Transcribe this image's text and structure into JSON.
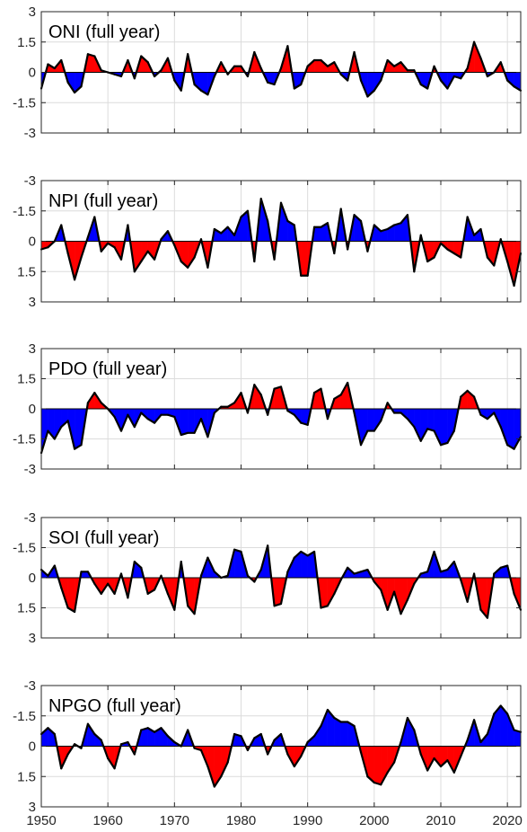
{
  "chart_data": {
    "type": "area",
    "layout": "vertical stack of 5 panels sharing the x-axis",
    "xlim": [
      1950,
      2022
    ],
    "x_ticks": [
      1950,
      1960,
      1970,
      1980,
      1990,
      2000,
      2010,
      2020
    ],
    "x_tick_labels": [
      "1950",
      "1960",
      "1970",
      "1980",
      "1990",
      "2000",
      "2010",
      "2020"
    ],
    "grid": true,
    "colors": {
      "positive_fill": "#ff0000",
      "negative_fill": "#0000ff",
      "line": "#000000"
    },
    "years": [
      1950,
      1951,
      1952,
      1953,
      1954,
      1955,
      1956,
      1957,
      1958,
      1959,
      1960,
      1961,
      1962,
      1963,
      1964,
      1965,
      1966,
      1967,
      1968,
      1969,
      1970,
      1971,
      1972,
      1973,
      1974,
      1975,
      1976,
      1977,
      1978,
      1979,
      1980,
      1981,
      1982,
      1983,
      1984,
      1985,
      1986,
      1987,
      1988,
      1989,
      1990,
      1991,
      1992,
      1993,
      1994,
      1995,
      1996,
      1997,
      1998,
      1999,
      2000,
      2001,
      2002,
      2003,
      2004,
      2005,
      2006,
      2007,
      2008,
      2009,
      2010,
      2011,
      2012,
      2013,
      2014,
      2015,
      2016,
      2017,
      2018,
      2019,
      2020,
      2021,
      2022
    ],
    "panels": [
      {
        "title": "ONI (full year)",
        "ylim": [
          -3,
          3
        ],
        "inverted": false,
        "y_ticks": [
          3,
          1.5,
          0,
          -1.5,
          -3
        ],
        "y_tick_labels": [
          "3",
          "1.5",
          "0",
          "-1.5",
          "-3"
        ],
        "values": [
          -0.8,
          0.4,
          0.2,
          0.6,
          -0.5,
          -1.0,
          -0.7,
          0.9,
          0.8,
          0.1,
          0.0,
          -0.1,
          -0.2,
          0.6,
          -0.3,
          0.8,
          0.5,
          -0.2,
          0.1,
          0.7,
          -0.4,
          -0.9,
          0.9,
          -0.6,
          -0.9,
          -1.1,
          -0.2,
          0.5,
          -0.1,
          0.3,
          0.3,
          -0.2,
          1.0,
          0.2,
          -0.5,
          -0.6,
          0.2,
          1.3,
          -0.8,
          -0.6,
          0.3,
          0.6,
          0.6,
          0.3,
          0.5,
          -0.1,
          -0.4,
          1.0,
          -0.4,
          -1.2,
          -0.9,
          -0.4,
          0.6,
          0.3,
          0.5,
          0.1,
          0.1,
          -0.6,
          -0.8,
          0.3,
          -0.4,
          -0.8,
          -0.2,
          -0.3,
          0.2,
          1.5,
          0.7,
          -0.2,
          0.0,
          0.5,
          -0.4,
          -0.7,
          -0.9
        ]
      },
      {
        "title": "NPI (full year)",
        "ylim": [
          -3,
          3
        ],
        "inverted": true,
        "y_ticks": [
          -3,
          -1.5,
          0,
          1.5,
          3
        ],
        "y_tick_labels": [
          "-3",
          "-1.5",
          "0",
          "1.5",
          "3"
        ],
        "values": [
          0.4,
          0.3,
          0.0,
          -0.8,
          0.6,
          1.9,
          0.8,
          -0.2,
          -1.2,
          0.5,
          0.1,
          0.3,
          0.9,
          -0.8,
          1.5,
          1.0,
          0.5,
          0.9,
          -0.1,
          -0.5,
          0.2,
          1.0,
          1.3,
          0.8,
          -0.1,
          1.3,
          -0.6,
          -0.4,
          -0.7,
          -0.3,
          -1.2,
          -1.5,
          1.0,
          -2.1,
          -1.0,
          0.9,
          -1.9,
          -1.0,
          -0.8,
          1.7,
          1.7,
          -0.7,
          -0.7,
          -0.9,
          0.6,
          -1.6,
          0.4,
          -1.3,
          -1.0,
          0.5,
          -0.8,
          -0.5,
          -0.6,
          -0.8,
          -0.9,
          -1.3,
          1.5,
          -0.3,
          1.0,
          0.8,
          0.1,
          0.4,
          0.6,
          0.8,
          -1.2,
          -0.3,
          -0.6,
          0.8,
          1.2,
          -0.1,
          1.0,
          2.2,
          0.6
        ]
      },
      {
        "title": "PDO (full year)",
        "ylim": [
          -3,
          3
        ],
        "inverted": false,
        "y_ticks": [
          3,
          1.5,
          0,
          -1.5,
          -3
        ],
        "y_tick_labels": [
          "3",
          "1.5",
          "0",
          "-1.5",
          "-3"
        ],
        "values": [
          -2.2,
          -1.1,
          -1.5,
          -0.9,
          -0.6,
          -2.0,
          -1.8,
          0.3,
          0.8,
          0.3,
          0.0,
          -0.4,
          -1.1,
          -0.3,
          -0.9,
          -0.2,
          -0.5,
          -0.7,
          -0.3,
          -0.3,
          -0.4,
          -1.3,
          -1.2,
          -1.2,
          -0.5,
          -1.4,
          -0.2,
          0.1,
          0.1,
          0.3,
          0.8,
          -0.2,
          1.2,
          0.7,
          -0.3,
          1.0,
          1.1,
          -0.1,
          -0.3,
          -0.7,
          -0.8,
          0.8,
          1.0,
          -0.5,
          0.5,
          0.7,
          1.3,
          -0.2,
          -1.8,
          -1.1,
          -1.1,
          -0.6,
          0.3,
          -0.2,
          -0.2,
          -0.5,
          -0.9,
          -1.6,
          -1.0,
          -1.1,
          -1.8,
          -1.7,
          -1.1,
          0.6,
          0.9,
          0.6,
          -0.3,
          -0.5,
          -0.2,
          -0.9,
          -1.8,
          -2.0,
          -1.4
        ]
      },
      {
        "title": "SOI (full year)",
        "ylim": [
          -3,
          3
        ],
        "inverted": true,
        "y_ticks": [
          -3,
          -1.5,
          0,
          1.5,
          3
        ],
        "y_tick_labels": [
          "-3",
          "-1.5",
          "0",
          "1.5",
          "3"
        ],
        "values": [
          -0.4,
          -0.1,
          -0.6,
          0.5,
          1.5,
          1.7,
          -0.3,
          -0.3,
          0.3,
          0.8,
          0.3,
          0.8,
          -0.2,
          1.0,
          -0.8,
          -0.5,
          0.8,
          0.6,
          -0.1,
          0.8,
          1.6,
          -0.8,
          1.4,
          1.8,
          -0.1,
          -1.0,
          -0.3,
          0.0,
          -0.1,
          -1.4,
          -1.3,
          -0.1,
          0.2,
          -0.4,
          -1.6,
          1.4,
          1.3,
          -0.3,
          -1.0,
          -1.3,
          -1.1,
          -1.3,
          1.5,
          1.4,
          0.8,
          0.1,
          -0.5,
          -0.2,
          -0.3,
          -0.4,
          0.2,
          0.6,
          1.6,
          0.7,
          1.8,
          1.1,
          0.3,
          -0.2,
          -0.3,
          -1.3,
          -0.3,
          -0.4,
          -0.8,
          0.1,
          1.2,
          -0.2,
          1.6,
          2.0,
          -0.2,
          -0.5,
          -0.6,
          0.8,
          1.6
        ]
      },
      {
        "title": "NPGO (full year)",
        "ylim": [
          -3,
          3
        ],
        "inverted": true,
        "y_ticks": [
          -3,
          -1.5,
          0,
          1.5,
          3
        ],
        "y_tick_labels": [
          "-3",
          "-1.5",
          "0",
          "1.5",
          "3"
        ],
        "values": [
          -0.6,
          -0.9,
          -0.6,
          1.1,
          0.4,
          -0.1,
          0.1,
          -1.1,
          -0.6,
          -0.3,
          0.6,
          1.1,
          -0.1,
          -0.2,
          0.4,
          -0.8,
          -0.9,
          -0.7,
          -0.9,
          -0.5,
          -0.2,
          0.0,
          -0.8,
          0.1,
          0.2,
          1.0,
          2.0,
          1.5,
          0.8,
          -0.6,
          -0.5,
          0.2,
          -0.4,
          -0.6,
          0.4,
          -0.3,
          -0.6,
          0.4,
          1.0,
          0.5,
          -0.2,
          -0.5,
          -1.0,
          -1.8,
          -1.4,
          -1.2,
          -1.2,
          -1.0,
          0.3,
          1.5,
          1.8,
          1.9,
          1.3,
          0.8,
          -0.2,
          -1.4,
          -0.8,
          0.4,
          1.2,
          0.6,
          1.0,
          0.7,
          1.3,
          0.5,
          -0.3,
          -1.3,
          -0.2,
          -0.6,
          -1.6,
          -2.0,
          -1.6,
          -0.8,
          -0.7
        ]
      }
    ]
  }
}
